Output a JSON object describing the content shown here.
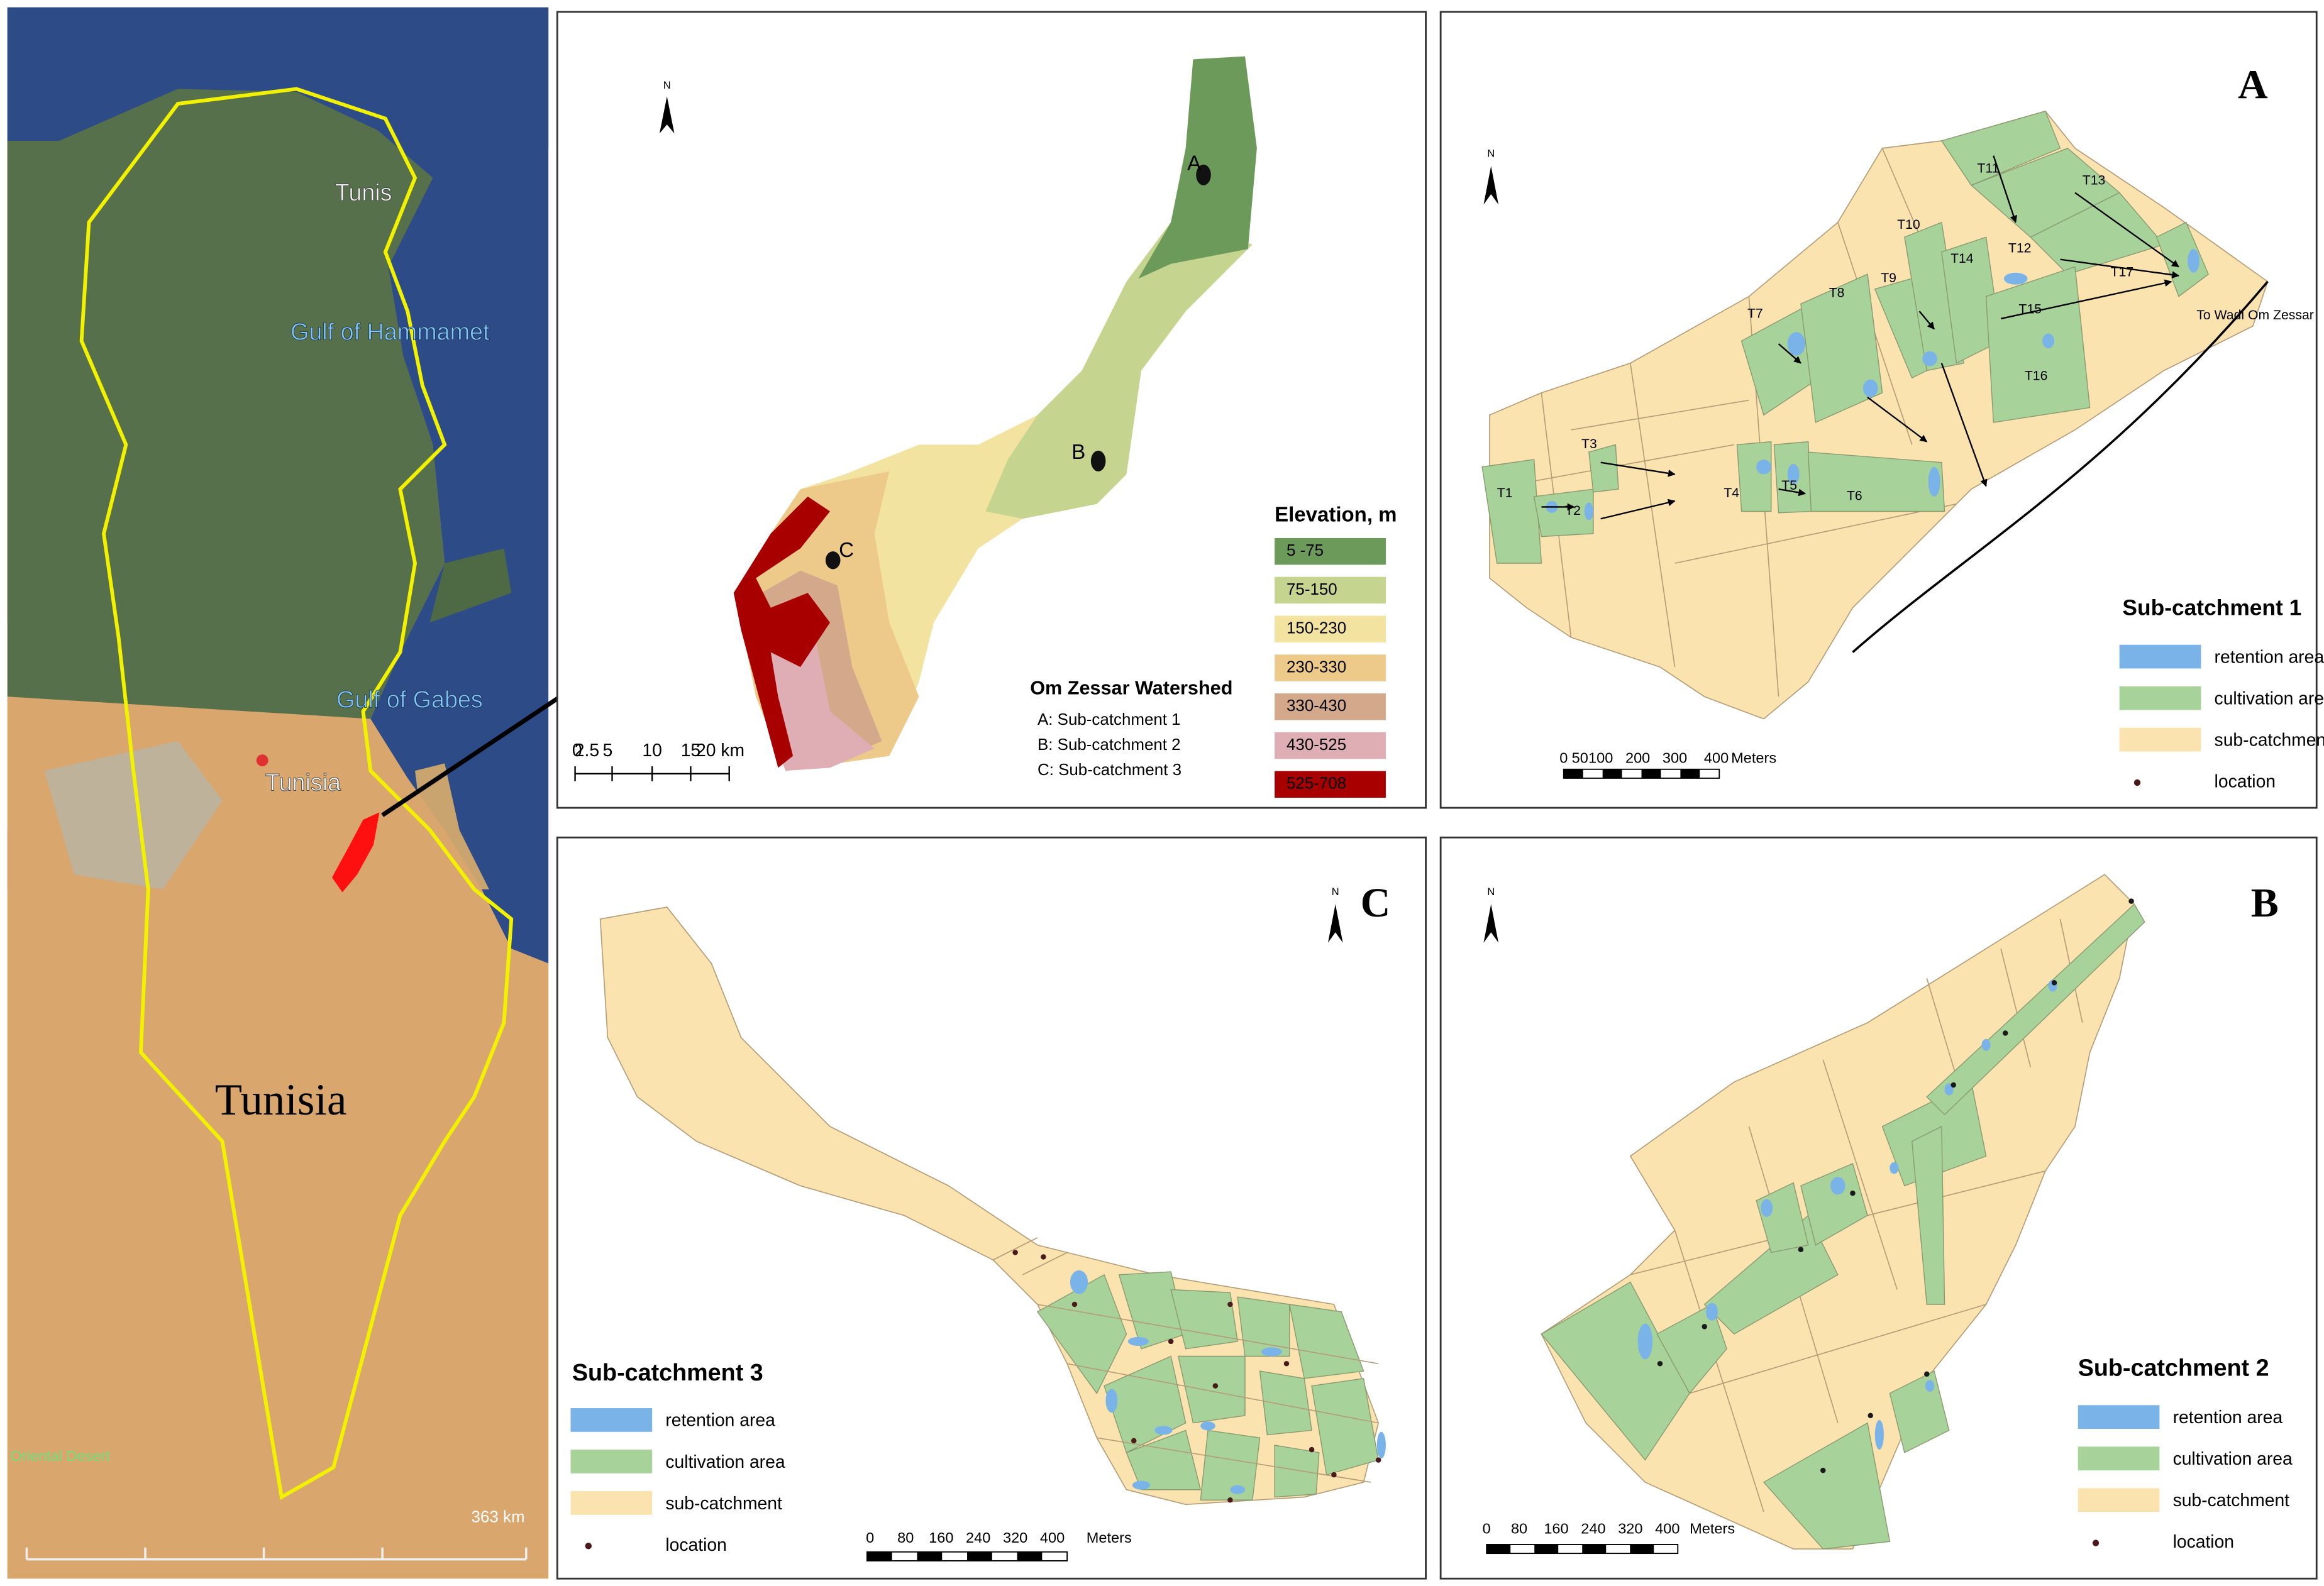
{
  "location_map": {
    "city": "Tunis",
    "gulf_north": "Gulf of Hammamet",
    "gulf_south": "Gulf of Gabes",
    "pin_label": "Tunisia",
    "country": "Tunisia",
    "desert": "Oriental Desert",
    "scale": "363 km"
  },
  "watershed_map": {
    "north": "N",
    "legend_title": "Elevation, m",
    "legend": [
      {
        "label": "5 -75",
        "color": "#6b9a5a"
      },
      {
        "label": "75-150",
        "color": "#c5d58f"
      },
      {
        "label": "150-230",
        "color": "#f3e3a0"
      },
      {
        "label": "230-330",
        "color": "#edc98a"
      },
      {
        "label": "330-430",
        "color": "#d4a88a"
      },
      {
        "label": "430-525",
        "color": "#dfaeb4"
      },
      {
        "label": "525-708",
        "color": "#a80000"
      }
    ],
    "title": "Om Zessar Watershed",
    "markers": [
      "A",
      "B",
      "C"
    ],
    "key": [
      "A:  Sub-catchment 1",
      "B:  Sub-catchment 2",
      "C:  Sub-catchment 3"
    ],
    "scale": [
      "0",
      "2.5",
      "5",
      "10",
      "15",
      "20 km"
    ]
  },
  "panels": [
    {
      "letter": "A",
      "north": "N",
      "title": "Sub-catchment 1",
      "legend": [
        {
          "label": "retention area",
          "color": "#79b3e8"
        },
        {
          "label": "cultivation area",
          "color": "#a7d39a"
        },
        {
          "label": "sub-catchment",
          "color": "#fbe3b0"
        },
        {
          "label": "location",
          "color": "#4a1a1a"
        }
      ],
      "scale": [
        "0",
        "50",
        "100",
        "200",
        "300",
        "400",
        "Meters"
      ],
      "terraces": [
        "T1",
        "T2",
        "T3",
        "T4",
        "T5",
        "T6",
        "T7",
        "T8",
        "T9",
        "T10",
        "T11",
        "T12",
        "T13",
        "T14",
        "T15",
        "T16",
        "T17"
      ],
      "outlet": "To Wadi Om Zessar"
    },
    {
      "letter": "C",
      "north": "N",
      "title": "Sub-catchment 3",
      "legend": [
        {
          "label": "retention area",
          "color": "#79b3e8"
        },
        {
          "label": "cultivation area",
          "color": "#a7d39a"
        },
        {
          "label": "sub-catchment",
          "color": "#fbe3b0"
        },
        {
          "label": "location",
          "color": "#4a1a1a"
        }
      ],
      "scale": [
        "0",
        "80",
        "160",
        "240",
        "320",
        "400",
        "Meters"
      ]
    },
    {
      "letter": "B",
      "north": "N",
      "title": "Sub-catchment 2",
      "legend": [
        {
          "label": "retention area",
          "color": "#79b3e8"
        },
        {
          "label": "cultivation area",
          "color": "#a7d39a"
        },
        {
          "label": "sub-catchment",
          "color": "#fbe3b0"
        },
        {
          "label": "location",
          "color": "#4a1a1a"
        }
      ],
      "scale": [
        "0",
        "80",
        "160",
        "240",
        "320",
        "400",
        "Meters"
      ]
    }
  ]
}
